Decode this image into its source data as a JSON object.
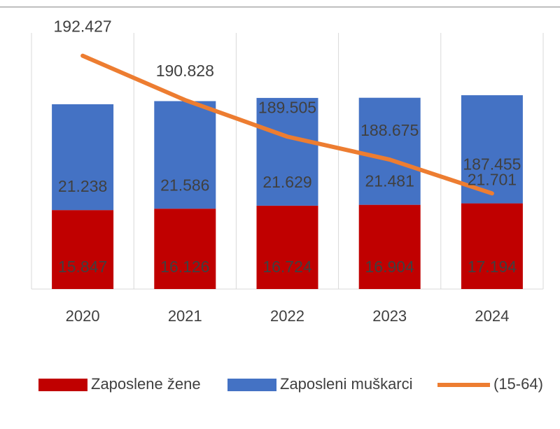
{
  "chart_data": {
    "type": "bar",
    "stacked": true,
    "categories": [
      "2020",
      "2021",
      "2022",
      "2023",
      "2024"
    ],
    "series": [
      {
        "name": "Zaposlene žene",
        "color": "#c00000",
        "values": [
          15847,
          16126,
          16724,
          16904,
          17194
        ],
        "value_labels": [
          "15.847",
          "16.126",
          "16.724",
          "16.904",
          "17.194"
        ]
      },
      {
        "name": "Zaposleni muškarci",
        "color": "#4472c4",
        "values": [
          21238,
          21586,
          21629,
          21481,
          21701
        ],
        "value_labels": [
          "21.238",
          "21.586",
          "21.629",
          "21.481",
          "21.701"
        ]
      },
      {
        "name": "(15-64)",
        "type": "line",
        "axis": "y2",
        "color": "#ed7d31",
        "values": [
          192427,
          190828,
          189505,
          188675,
          187455
        ],
        "value_labels": [
          "192.427",
          "190.828",
          "189.505",
          "188.675",
          "187.455"
        ]
      }
    ],
    "ylim": [
      0,
      50000
    ],
    "y2lim": [
      184000,
      193000
    ],
    "grid": true,
    "legend": "bottom"
  }
}
